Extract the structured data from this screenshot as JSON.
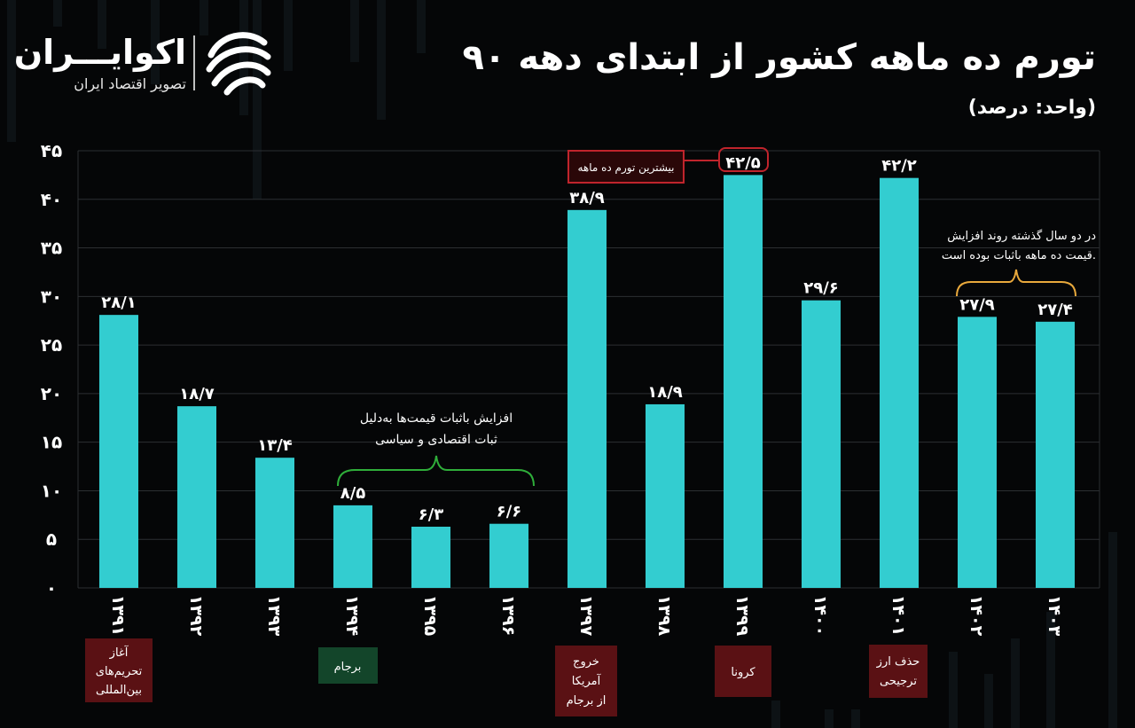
{
  "header": {
    "title": "تورم ده ماهه کشور از ابتدای دهه ۹۰",
    "unit": "(واحد: درصد)",
    "logo_name": "اکوایـــران",
    "logo_tagline": "تصویر اقتصاد ایران"
  },
  "colors": {
    "bar": "#33cdd0",
    "background": "#050607",
    "grid": "#2c2f32",
    "green_bracket": "#2fae3a",
    "orange_bracket": "#e9a93c",
    "red_box": "#5a1114",
    "green_box": "#13452a",
    "highlight_border": "#c0242c"
  },
  "chart_data": {
    "type": "bar",
    "categories": [
      "۱۳۹۱",
      "۱۳۹۲",
      "۱۳۹۳",
      "۱۳۹۴",
      "۱۳۹۵",
      "۱۳۹۶",
      "۱۳۹۷",
      "۱۳۹۸",
      "۱۳۹۹",
      "۱۴۰۰",
      "۱۴۰۱",
      "۱۴۰۲",
      "۱۴۰۳"
    ],
    "values": [
      28.1,
      18.7,
      13.4,
      8.5,
      6.3,
      6.6,
      38.9,
      18.9,
      42.5,
      29.6,
      42.2,
      27.9,
      27.4
    ],
    "value_labels": [
      "۲۸/۱",
      "۱۸/۷",
      "۱۳/۴",
      "۸/۵",
      "۶/۳",
      "۶/۶",
      "۳۸/۹",
      "۱۸/۹",
      "۴۲/۵",
      "۲۹/۶",
      "۴۲/۲",
      "۲۷/۹",
      "۲۷/۴"
    ],
    "ylim": [
      0,
      45
    ],
    "yticks": [
      0,
      5,
      10,
      15,
      20,
      25,
      30,
      35,
      40,
      45
    ],
    "ytick_labels": [
      "۰",
      "۵",
      "۱۰",
      "۱۵",
      "۲۰",
      "۲۵",
      "۳۰",
      "۳۵",
      "۴۰",
      "۴۵"
    ],
    "grid": true,
    "xlabel": "",
    "ylabel": ""
  },
  "annotations": {
    "max_label": "بیشترین تورم ده ماهه",
    "green_note": [
      "افزایش باثبات قیمت‌ها به‌دلیل",
      "ثبات اقتصادی و سیاسی"
    ],
    "orange_note": [
      "در دو سال گذشته روند افزایش",
      "قیمت ده ماهه باثبات بوده است."
    ],
    "events": [
      {
        "lines": [
          "آغاز",
          "تحریم‌های",
          "بین‌المللی"
        ],
        "kind": "red"
      },
      {
        "lines": [
          "برجام"
        ],
        "kind": "green"
      },
      {
        "lines": [
          "خروج",
          "آمریکا",
          "از برجام"
        ],
        "kind": "red"
      },
      {
        "lines": [
          "کرونا"
        ],
        "kind": "red"
      },
      {
        "lines": [
          "حذف ارز",
          "ترجیحی"
        ],
        "kind": "red"
      }
    ]
  }
}
